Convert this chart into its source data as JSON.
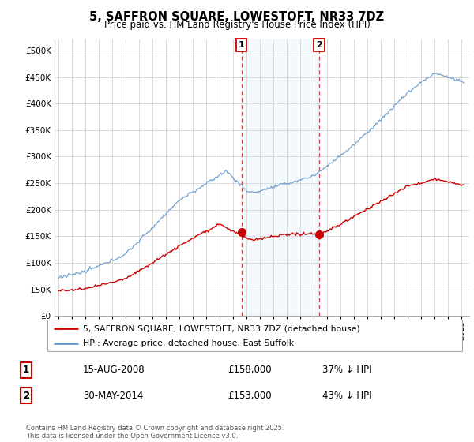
{
  "title": "5, SAFFRON SQUARE, LOWESTOFT, NR33 7DZ",
  "subtitle": "Price paid vs. HM Land Registry's House Price Index (HPI)",
  "ylabel_ticks": [
    0,
    50000,
    100000,
    150000,
    200000,
    250000,
    300000,
    350000,
    400000,
    450000,
    500000
  ],
  "ylim": [
    0,
    520000
  ],
  "xlim_start": 1994.7,
  "xlim_end": 2025.6,
  "hpi_color": "#6699cc",
  "property_color": "#cc0000",
  "event1_x": 2008.62,
  "event1_price": 158000,
  "event1_label": "15-AUG-2008",
  "event1_pct": "37% ↓ HPI",
  "event1_num": "1",
  "event2_x": 2014.41,
  "event2_price": 153000,
  "event2_label": "30-MAY-2014",
  "event2_pct": "43% ↓ HPI",
  "event2_num": "2",
  "legend_line1": "5, SAFFRON SQUARE, LOWESTOFT, NR33 7DZ (detached house)",
  "legend_line2": "HPI: Average price, detached house, East Suffolk",
  "footer": "Contains HM Land Registry data © Crown copyright and database right 2025.\nThis data is licensed under the Open Government Licence v3.0.",
  "table_row1_num": "1",
  "table_row1_date": "15-AUG-2008",
  "table_row1_price": "£158,000",
  "table_row1_pct": "37% ↓ HPI",
  "table_row2_num": "2",
  "table_row2_date": "30-MAY-2014",
  "table_row2_price": "£153,000",
  "table_row2_pct": "43% ↓ HPI",
  "background_color": "#ffffff",
  "grid_color": "#cccccc"
}
